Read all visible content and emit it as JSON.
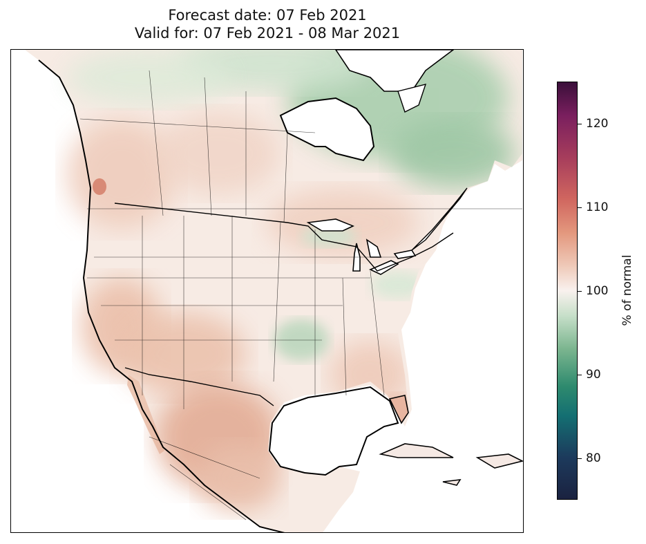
{
  "title": {
    "line1": "Forecast date: 07 Feb 2021",
    "line2": "Valid for: 07 Feb 2021 - 08 Mar 2021"
  },
  "colorbar": {
    "label": "% of normal",
    "ticks": [
      "80",
      "90",
      "100",
      "110",
      "120"
    ],
    "range": [
      75,
      125
    ],
    "colors": {
      "low": "#1b2240",
      "teal": "#146f72",
      "green": "#7bb58f",
      "neutral": "#f9f1ee",
      "salmon": "#e3977d",
      "rose": "#d0665f",
      "high": "#3a0f3a"
    }
  },
  "map": {
    "region": "North America",
    "features": [
      "coastlines",
      "country-borders",
      "state-province-borders",
      "great-lakes",
      "hudson-bay",
      "gulf-of-mexico",
      "caribbean-islands"
    ]
  }
}
